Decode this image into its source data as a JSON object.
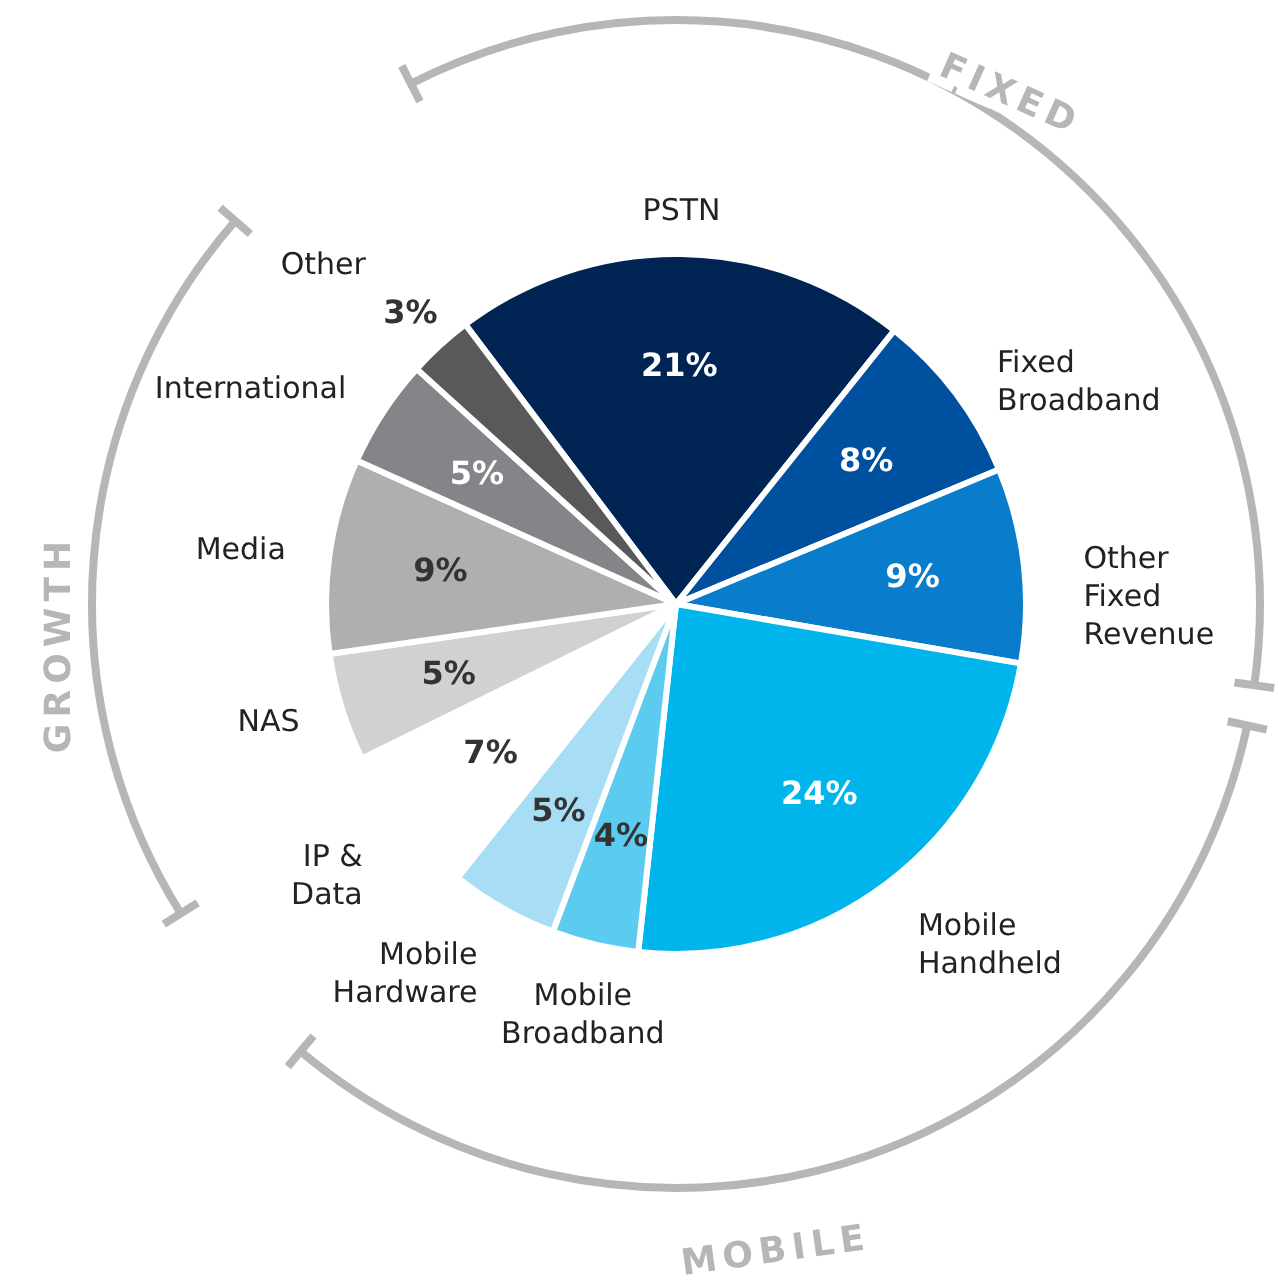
{
  "chart_data": {
    "type": "pie",
    "categories": [
      "PSTN",
      "Fixed Broadband",
      "Other Fixed Revenue",
      "Mobile Handheld",
      "Mobile Broadband",
      "Mobile Hardware",
      "IP & Data",
      "NAS",
      "Media",
      "International",
      "Other"
    ],
    "values": [
      21,
      8,
      9,
      24,
      4,
      5,
      7,
      5,
      9,
      5,
      3
    ],
    "colors": [
      "#002554",
      "#0050a0",
      "#0a7ccc",
      "#00b5ec",
      "#5bcbf0",
      "#a8def5",
      "#ffffff",
      "#d0d1d3",
      "#aeafb1",
      "#848589",
      "#58595b"
    ],
    "value_labels": [
      "21%",
      "8%",
      "9%",
      "24%",
      "4%",
      "5%",
      "7%",
      "5%",
      "9%",
      "5%",
      "3%"
    ],
    "annotations": [
      "FIXED",
      "GROWTH",
      "MOBILE"
    ]
  }
}
